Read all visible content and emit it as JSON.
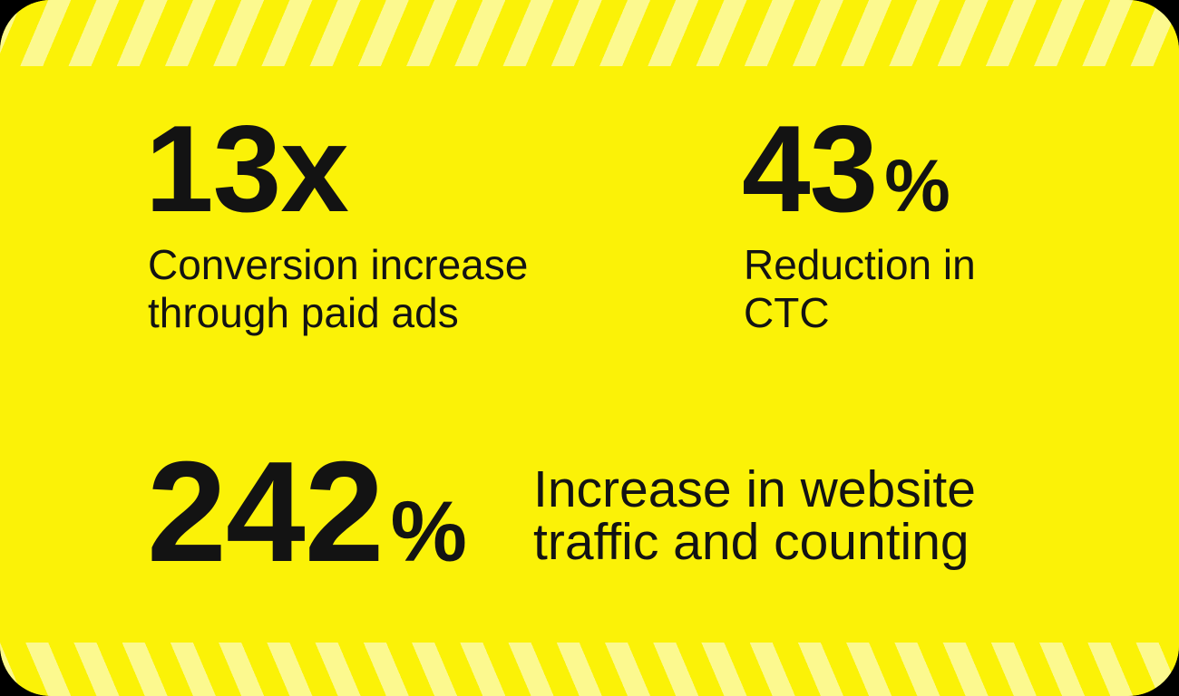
{
  "page": {
    "background_color": "#000000"
  },
  "card": {
    "background_color": "#FBF207",
    "stripe_color": "#FCF98F",
    "text_color": "#131313",
    "stripe_direction_top": "diagonal-forward-slash",
    "stripe_direction_bottom": "diagonal-back-slash"
  },
  "stats": [
    {
      "value": "13x",
      "unit": "",
      "label": "Conversion increase\nthrough paid ads"
    },
    {
      "value": "43",
      "unit": "%",
      "label": "Reduction in\nCTC"
    },
    {
      "value": "242",
      "unit": "%",
      "label": "Increase in website\ntraffic and counting"
    }
  ]
}
